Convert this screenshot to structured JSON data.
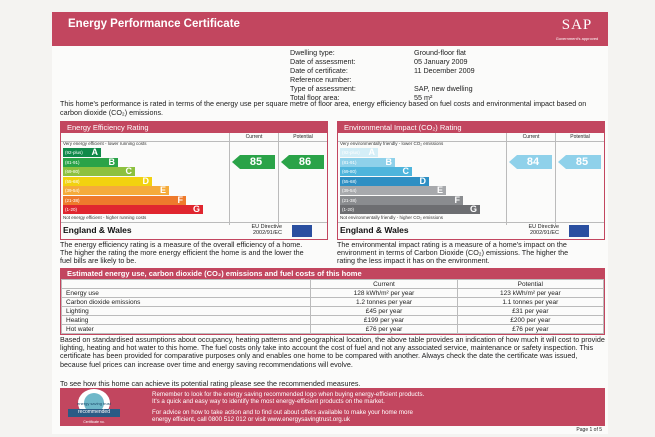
{
  "header": {
    "title": "Energy Performance Certificate",
    "logo": "SAP",
    "logo_sub": "Government's approved"
  },
  "dwelling": [
    {
      "label": "Dwelling type:",
      "value": "Ground-floor flat"
    },
    {
      "label": "Date of assessment:",
      "value": "05 January 2009"
    },
    {
      "label": "Date of certificate:",
      "value": "11 December 2009"
    },
    {
      "label": "Reference number:",
      "value": ""
    },
    {
      "label": "Type of assessment:",
      "value": "SAP, new dwelling"
    },
    {
      "label": "Total floor area:",
      "value": "55 m²"
    }
  ],
  "performance_text": "This home's performance is rated in terms of the energy use per square metre of floor area, energy efficiency based on fuel costs and environmental impact based on carbon dioxide (CO₂) emissions.",
  "efficiency": {
    "title": "Energy Efficiency Rating",
    "current_label": "Current",
    "potential_label": "Potential",
    "top_note": "Very energy efficient - lower running costs",
    "bottom_note": "Not energy efficient - higher running costs",
    "bands": [
      {
        "range": "(92-plus)",
        "letter": "A",
        "color": "#0f8a4a"
      },
      {
        "range": "(81-91)",
        "letter": "B",
        "color": "#2aa348"
      },
      {
        "range": "(69-80)",
        "letter": "C",
        "color": "#8dc13f"
      },
      {
        "range": "(55-68)",
        "letter": "D",
        "color": "#f2d20f"
      },
      {
        "range": "(39-54)",
        "letter": "E",
        "color": "#f5ab3b"
      },
      {
        "range": "(21-38)",
        "letter": "F",
        "color": "#ee7a2c"
      },
      {
        "range": "(1-20)",
        "letter": "G",
        "color": "#e0262f"
      }
    ],
    "current": 85,
    "potential": 86,
    "arrow_color": "#2aa348",
    "region": "England & Wales",
    "eu": "EU Directive\n2002/91/EC",
    "description": "The energy efficiency rating is a measure of the overall efficiency of a home. The higher the rating the more energy efficient the home is and the lower the fuel bills are likely to be."
  },
  "environment": {
    "title": "Environmental Impact (CO₂) Rating",
    "current_label": "Current",
    "potential_label": "Potential",
    "top_note": "Very environmentally friendly - lower CO₂ emissions",
    "bottom_note": "Not environmentally friendly - higher CO₂ emissions",
    "bands": [
      {
        "range": "(92-plus)",
        "letter": "A",
        "color": "#d4eef7"
      },
      {
        "range": "(81-91)",
        "letter": "B",
        "color": "#8fd1ea"
      },
      {
        "range": "(69-80)",
        "letter": "C",
        "color": "#4fb5dc"
      },
      {
        "range": "(55-68)",
        "letter": "D",
        "color": "#2e8fc3"
      },
      {
        "range": "(39-54)",
        "letter": "E",
        "color": "#a7a9ac"
      },
      {
        "range": "(21-38)",
        "letter": "F",
        "color": "#8a8c8f"
      },
      {
        "range": "(1-20)",
        "letter": "G",
        "color": "#6d6e71"
      }
    ],
    "current": 84,
    "potential": 85,
    "arrow_color": "#8fd1ea",
    "region": "England & Wales",
    "eu": "EU Directive\n2002/91/EC",
    "description": "The environmental impact rating is a measure of a home's impact on the environment in terms of Carbon Dioxide (CO₂) emissions. The higher the rating the less impact it has on the environment."
  },
  "estimates": {
    "title": "Estimated energy use, carbon dioxide (CO₂) emissions and fuel costs of this home",
    "current_label": "Current",
    "potential_label": "Potential",
    "rows": [
      {
        "name": "Energy use",
        "current": "128 kWh/m² per year",
        "potential": "123 kWh/m² per year"
      },
      {
        "name": "Carbon dioxide emissions",
        "current": "1.2 tonnes per year",
        "potential": "1.1 tonnes per year"
      },
      {
        "name": "Lighting",
        "current": "£45 per year",
        "potential": "£31 per year"
      },
      {
        "name": "Heating",
        "current": "£199 per year",
        "potential": "£200 per year"
      },
      {
        "name": "Hot water",
        "current": "£76 per year",
        "potential": "£76 per year"
      }
    ]
  },
  "basis_text": "Based on standardised assumptions about occupancy, heating patterns and geographical location, the above table provides an indication of how much it will cost to provide lighting, heating and hot water to this home. The fuel costs only take into account the cost of fuel and not any associated service, maintenance or safety inspection. This certificate has been provided for comparative purposes only and enables one home to be compared with another. Always check the date the certificate was issued, because fuel prices can increase over time and energy saving recommendations will evolve.",
  "see_how": "To see how this home can achieve its potential rating please see the recommended measures.",
  "footer": {
    "badge_top": "energy saving trust",
    "badge_mid": "recommended",
    "badge_bottom": "Certificate no.",
    "line1": "Remember to look for the energy saving recommended logo when buying energy-efficient products.",
    "line2": "It's a quick and easy way to identify the most energy-efficient products on the market.",
    "line3": "For advice on how to take action and to find out about offers available to make your home more",
    "line4": "energy efficient, call 0800 512 012 or visit www.energysavingtrust.org.uk"
  },
  "page_number": "Page 1 of 5"
}
